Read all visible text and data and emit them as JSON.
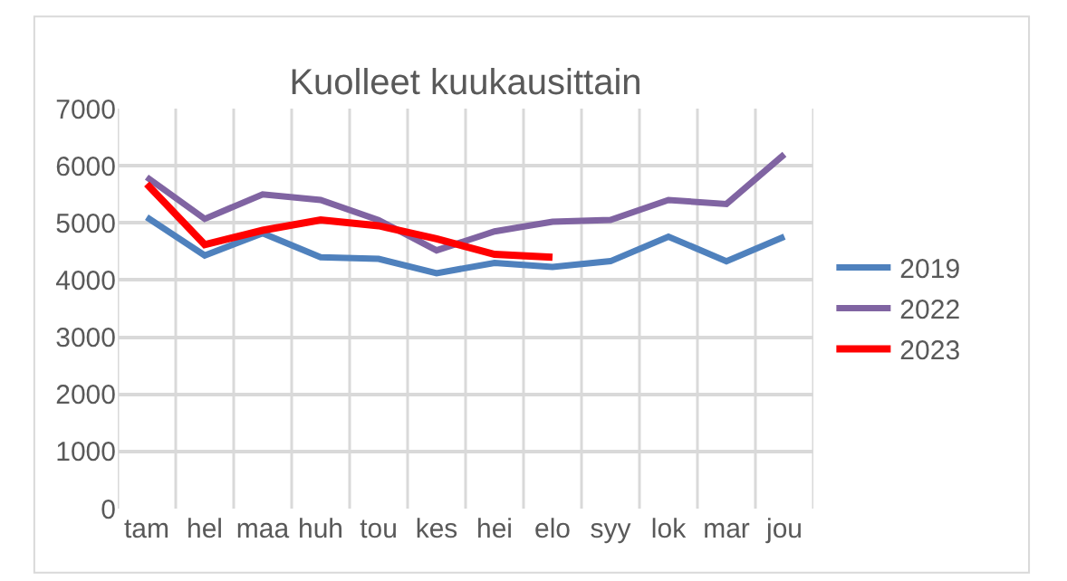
{
  "chart_data": {
    "type": "line",
    "title": "Kuolleet kuukausittain",
    "categories": [
      "tam",
      "hel",
      "maa",
      "huh",
      "tou",
      "kes",
      "hei",
      "elo",
      "syy",
      "lok",
      "mar",
      "jou"
    ],
    "series": [
      {
        "name": "2019",
        "color": "#4f81bd",
        "values": [
          5100,
          4430,
          4820,
          4400,
          4370,
          4120,
          4300,
          4230,
          4330,
          4760,
          4330,
          4760
        ]
      },
      {
        "name": "2022",
        "color": "#8064a2",
        "values": [
          5800,
          5070,
          5500,
          5400,
          5050,
          4520,
          4850,
          5020,
          5050,
          5400,
          5330,
          6200
        ]
      },
      {
        "name": "2023",
        "color": "#ff0000",
        "values": [
          5680,
          4620,
          4870,
          5050,
          4950,
          4720,
          4450,
          4400,
          null,
          null,
          null,
          null
        ]
      }
    ],
    "ylim": [
      0,
      7000
    ],
    "yticks": [
      0,
      1000,
      2000,
      3000,
      4000,
      5000,
      6000,
      7000
    ],
    "grid": true,
    "legend": "right",
    "marker": "none",
    "line_style": "solid"
  }
}
